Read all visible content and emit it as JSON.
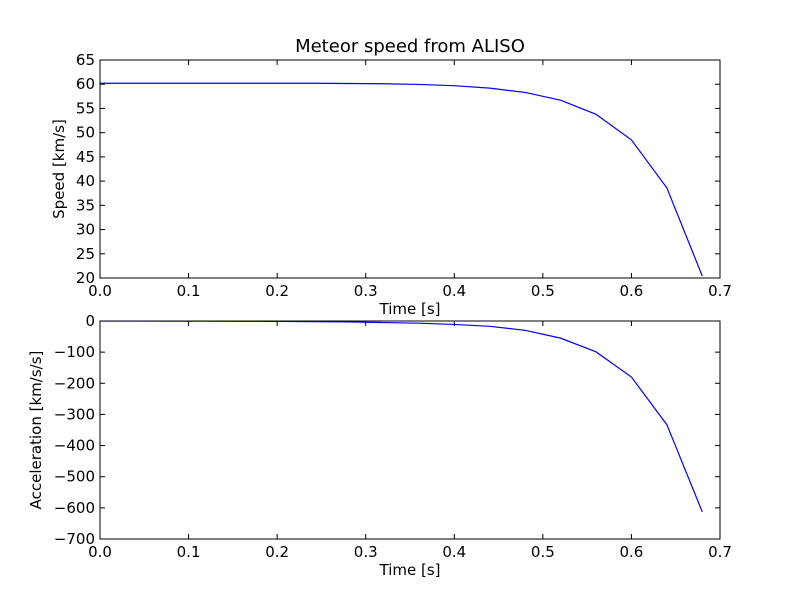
{
  "chart_data": [
    {
      "type": "line",
      "title": "Meteor speed from ALISO",
      "xlabel": "Time [s]",
      "ylabel": "Speed [km/s]",
      "xlim": [
        0.0,
        0.7
      ],
      "ylim": [
        20,
        65
      ],
      "xticks": [
        "0.0",
        "0.1",
        "0.2",
        "0.3",
        "0.4",
        "0.5",
        "0.6",
        "0.7"
      ],
      "yticks": [
        "20",
        "25",
        "30",
        "35",
        "40",
        "45",
        "50",
        "55",
        "60",
        "65"
      ],
      "grid": false,
      "series": [
        {
          "color": "#0000ff",
          "x": [
            0.0,
            0.04,
            0.08,
            0.12,
            0.16,
            0.2,
            0.24,
            0.28,
            0.32,
            0.36,
            0.4,
            0.44,
            0.48,
            0.52,
            0.56,
            0.6,
            0.64,
            0.68
          ],
          "y": [
            60.2,
            60.2,
            60.2,
            60.2,
            60.2,
            60.2,
            60.2,
            60.15,
            60.1,
            59.95,
            59.7,
            59.2,
            58.3,
            56.7,
            53.8,
            48.5,
            38.6,
            20.4
          ]
        }
      ]
    },
    {
      "type": "line",
      "title": "",
      "xlabel": "Time [s]",
      "ylabel": "Acceleration [km/s/s]",
      "xlim": [
        0.0,
        0.7
      ],
      "ylim": [
        -700,
        0
      ],
      "xticks": [
        "0.0",
        "0.1",
        "0.2",
        "0.3",
        "0.4",
        "0.5",
        "0.6",
        "0.7"
      ],
      "yticks": [
        "0",
        "−100",
        "−200",
        "−300",
        "−400",
        "−500",
        "−600",
        "−700"
      ],
      "grid": false,
      "series": [
        {
          "color": "#0000ff",
          "x": [
            0.0,
            0.04,
            0.08,
            0.12,
            0.16,
            0.2,
            0.24,
            0.28,
            0.32,
            0.36,
            0.4,
            0.44,
            0.48,
            0.52,
            0.56,
            0.6,
            0.64,
            0.68
          ],
          "y": [
            -0.1,
            -0.2,
            -0.3,
            -0.5,
            -0.8,
            -1.2,
            -2,
            -3,
            -5,
            -7,
            -11,
            -17,
            -30,
            -55,
            -99,
            -180,
            -333,
            -613
          ]
        }
      ]
    }
  ]
}
